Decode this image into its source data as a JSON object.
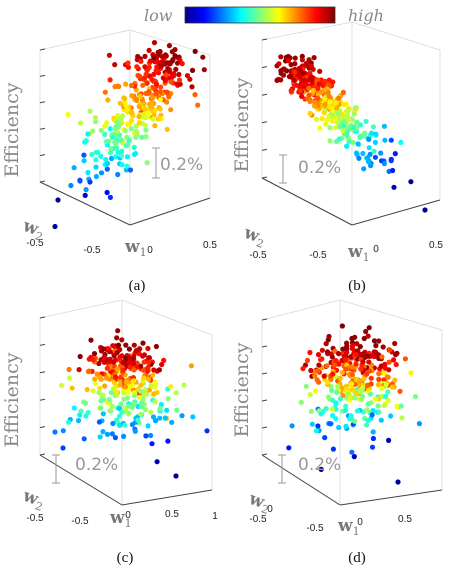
{
  "colorbar": {
    "low_label": "low",
    "high_label": "high"
  },
  "chart_data": [
    {
      "type": "scatter",
      "caption": "(a)",
      "zlabel": "Efficiency",
      "xlabel": "w",
      "xlabel_sub": "1",
      "ylabel": "w",
      "ylabel_sub": "2",
      "x_ticks": [
        "-0.5",
        "0",
        "0.5"
      ],
      "y_ticks": [
        "-0.5"
      ],
      "scale_annotation": "0.2%"
    },
    {
      "type": "scatter",
      "caption": "(b)",
      "zlabel": "Efficiency",
      "xlabel": "w",
      "xlabel_sub": "1",
      "ylabel": "w",
      "ylabel_sub": "2",
      "x_ticks": [
        "-0.5",
        "0",
        "0.5"
      ],
      "y_ticks": [
        "-0.5"
      ],
      "scale_annotation": "0.2%"
    },
    {
      "type": "scatter",
      "caption": "(c)",
      "zlabel": "Efficiency",
      "xlabel": "w",
      "xlabel_sub": "1",
      "ylabel": "w",
      "ylabel_sub": "2",
      "x_ticks": [
        "-0.5",
        "0",
        "0.5",
        "1"
      ],
      "y_ticks": [
        "-0.5"
      ],
      "scale_annotation": "0.2%"
    },
    {
      "type": "scatter",
      "caption": "(d)",
      "zlabel": "Efficiency",
      "xlabel": "w",
      "xlabel_sub": "1",
      "ylabel": "w",
      "ylabel_sub": "2",
      "x_ticks": [
        "-0.5",
        "0",
        "0.5"
      ],
      "y_ticks": [
        "0",
        "-0.5"
      ],
      "scale_annotation": "0.2%"
    }
  ]
}
